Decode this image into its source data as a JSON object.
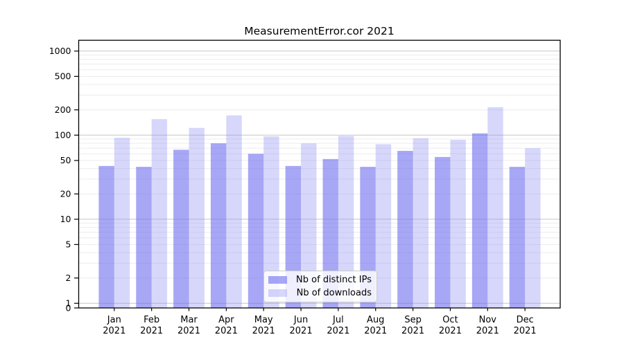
{
  "title": "MeasurementError.cor 2021",
  "legend": {
    "items": [
      {
        "label": "Nb of distinct IPs"
      },
      {
        "label": "Nb of downloads"
      }
    ]
  },
  "colors": {
    "distinct_ips_bar": "#6c6cef",
    "distinct_ips_opacity": 0.6,
    "downloads_bar": "#8d8df4",
    "downloads_opacity": 0.35,
    "major_gridline": "#c6c6c6",
    "minor_gridline": "#ececec",
    "axis": "#000000",
    "text": "#000000"
  },
  "chart_data": {
    "type": "bar",
    "title": "MeasurementError.cor 2021",
    "categories": [
      "Jan 2021",
      "Feb 2021",
      "Mar 2021",
      "Apr 2021",
      "May 2021",
      "Jun 2021",
      "Jul 2021",
      "Aug 2021",
      "Sep 2021",
      "Oct 2021",
      "Nov 2021",
      "Dec 2021"
    ],
    "series": [
      {
        "name": "Nb of distinct IPs",
        "color": "#6c6cef",
        "opacity": 0.6,
        "values": [
          43,
          42,
          67,
          80,
          60,
          43,
          52,
          42,
          65,
          55,
          105,
          42
        ]
      },
      {
        "name": "Nb of downloads",
        "color": "#8d8df4",
        "opacity": 0.35,
        "values": [
          93,
          155,
          122,
          172,
          97,
          80,
          98,
          78,
          92,
          88,
          215,
          70
        ]
      }
    ],
    "xlabel": "",
    "ylabel": "",
    "yscale": "symlog",
    "yticks": [
      0,
      1,
      2,
      5,
      10,
      20,
      50,
      100,
      200,
      500,
      1000
    ],
    "ylim": [
      0,
      1500
    ],
    "grid": true,
    "legend_position": "lower center"
  }
}
